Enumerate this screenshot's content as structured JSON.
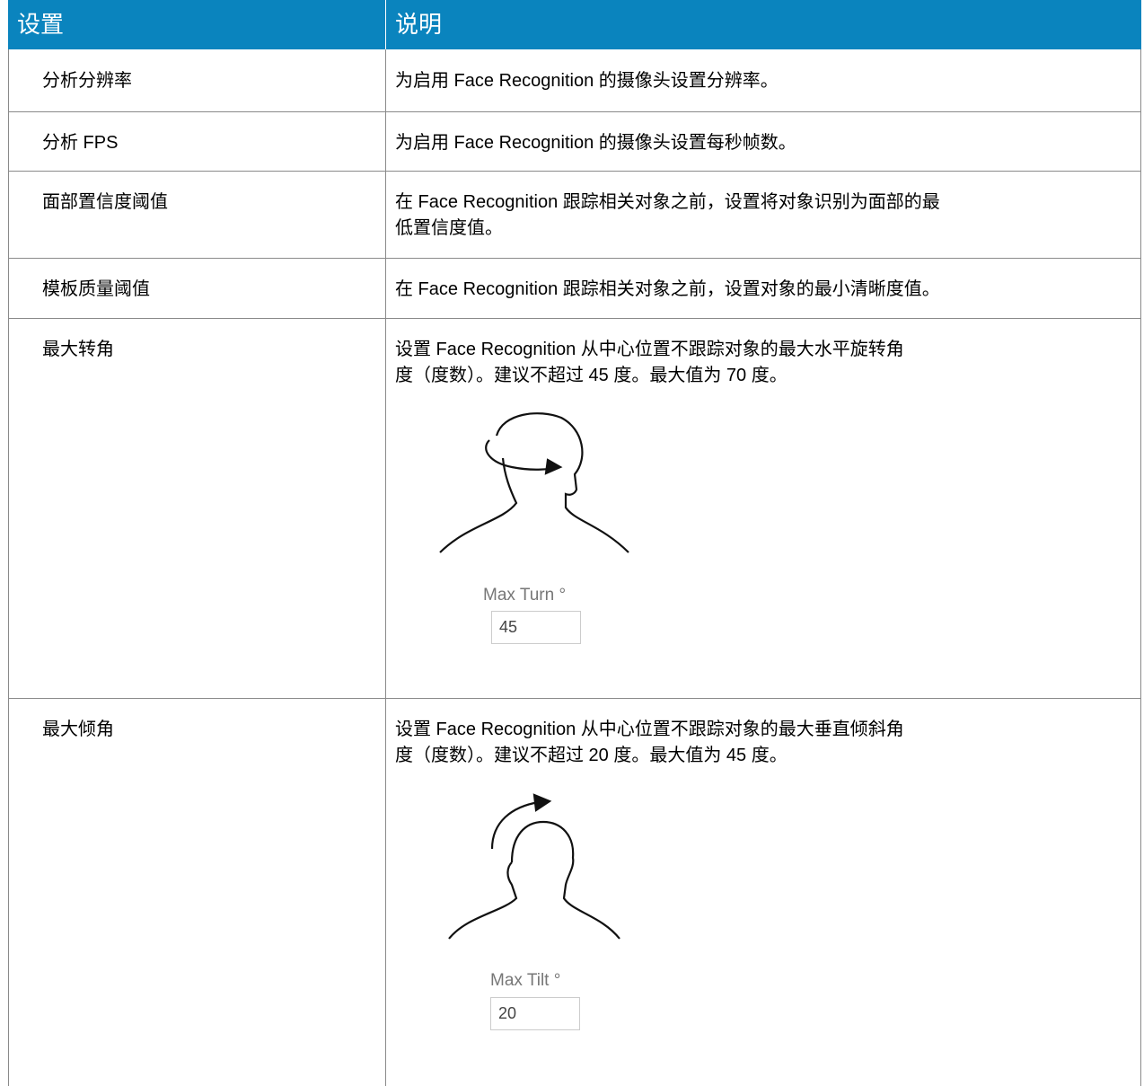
{
  "table": {
    "header": [
      "设置",
      "说明"
    ],
    "rows": [
      {
        "setting": "分析分辨率",
        "description": [
          "为启用 Face Recognition 的摄像头设置分辨率。"
        ]
      },
      {
        "setting": "分析 FPS",
        "description": [
          "为启用 Face Recognition 的摄像头设置每秒帧数。"
        ]
      },
      {
        "setting": "面部置信度阈值",
        "description": [
          "在 Face Recognition 跟踪相关对象之前，设置将对象识别为面部的最",
          "低置信度值。"
        ]
      },
      {
        "setting": "模板质量阈值",
        "description": [
          "在 Face Recognition 跟踪相关对象之前，设置对象的最小清晰度值。"
        ]
      },
      {
        "setting": "最大转角",
        "description": [
          "设置 Face Recognition 从中心位置不跟踪对象的最大水平旋转角",
          "度（度数）。建议不超过 45 度。最大值为 70 度。"
        ],
        "figure": {
          "label": "Max Turn °",
          "value": "45"
        }
      },
      {
        "setting": "最大倾角",
        "description": [
          "设置 Face Recognition 从中心位置不跟踪对象的最大垂直倾斜角",
          "度（度数）。建议不超过 20 度。最大值为 45 度。"
        ],
        "figure": {
          "label": "Max Tilt °",
          "value": "20"
        }
      }
    ]
  }
}
